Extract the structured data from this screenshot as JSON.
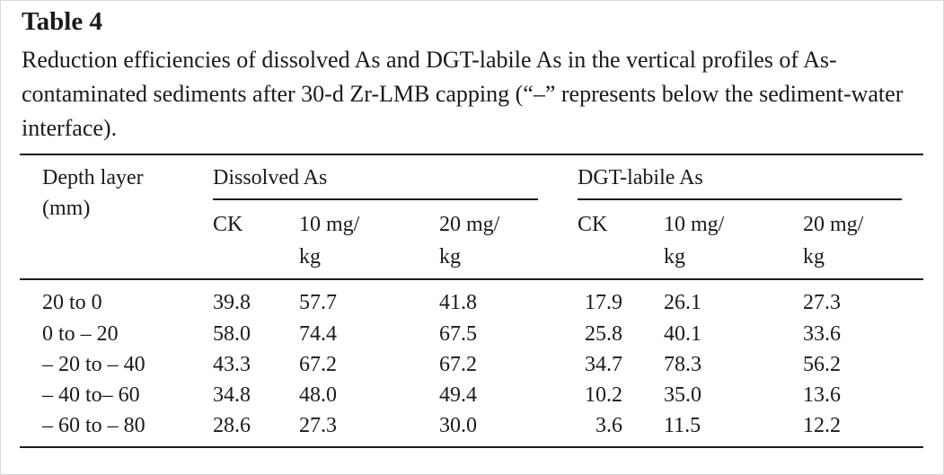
{
  "table_label": "Table 4",
  "caption": "Reduction efficiencies of dissolved As and DGT-labile As in the vertical profiles of As-contaminated sediments after 30-d Zr-LMB capping (“–” represents below the sediment-water interface).",
  "headers": {
    "depth_line1": "Depth layer",
    "depth_line2": "(mm)",
    "group_dissolved": "Dissolved As",
    "group_dgt": "DGT-labile As",
    "ck": "CK",
    "c10_line1": "10 mg/",
    "c20_line1": "20 mg/",
    "unit_line2": "kg"
  },
  "rows": [
    {
      "depth": "20 to 0",
      "d_ck": "39.8",
      "d_10": "57.7",
      "d_20": "41.8",
      "g_ck": "17.9",
      "g_10": "26.1",
      "g_20": "27.3"
    },
    {
      "depth": "0 to – 20",
      "d_ck": "58.0",
      "d_10": "74.4",
      "d_20": "67.5",
      "g_ck": "25.8",
      "g_10": "40.1",
      "g_20": "33.6"
    },
    {
      "depth": "– 20 to – 40",
      "d_ck": "43.3",
      "d_10": "67.2",
      "d_20": "67.2",
      "g_ck": "34.7",
      "g_10": "78.3",
      "g_20": "56.2"
    },
    {
      "depth": "– 40 to– 60",
      "d_ck": "34.8",
      "d_10": "48.0",
      "d_20": "49.4",
      "g_ck": "10.2",
      "g_10": "35.0",
      "g_20": "13.6"
    },
    {
      "depth": "– 60 to – 80",
      "d_ck": "28.6",
      "d_10": "27.3",
      "d_20": "30.0",
      "g_ck": "3.6",
      "g_10": "11.5",
      "g_20": "12.2"
    }
  ]
}
